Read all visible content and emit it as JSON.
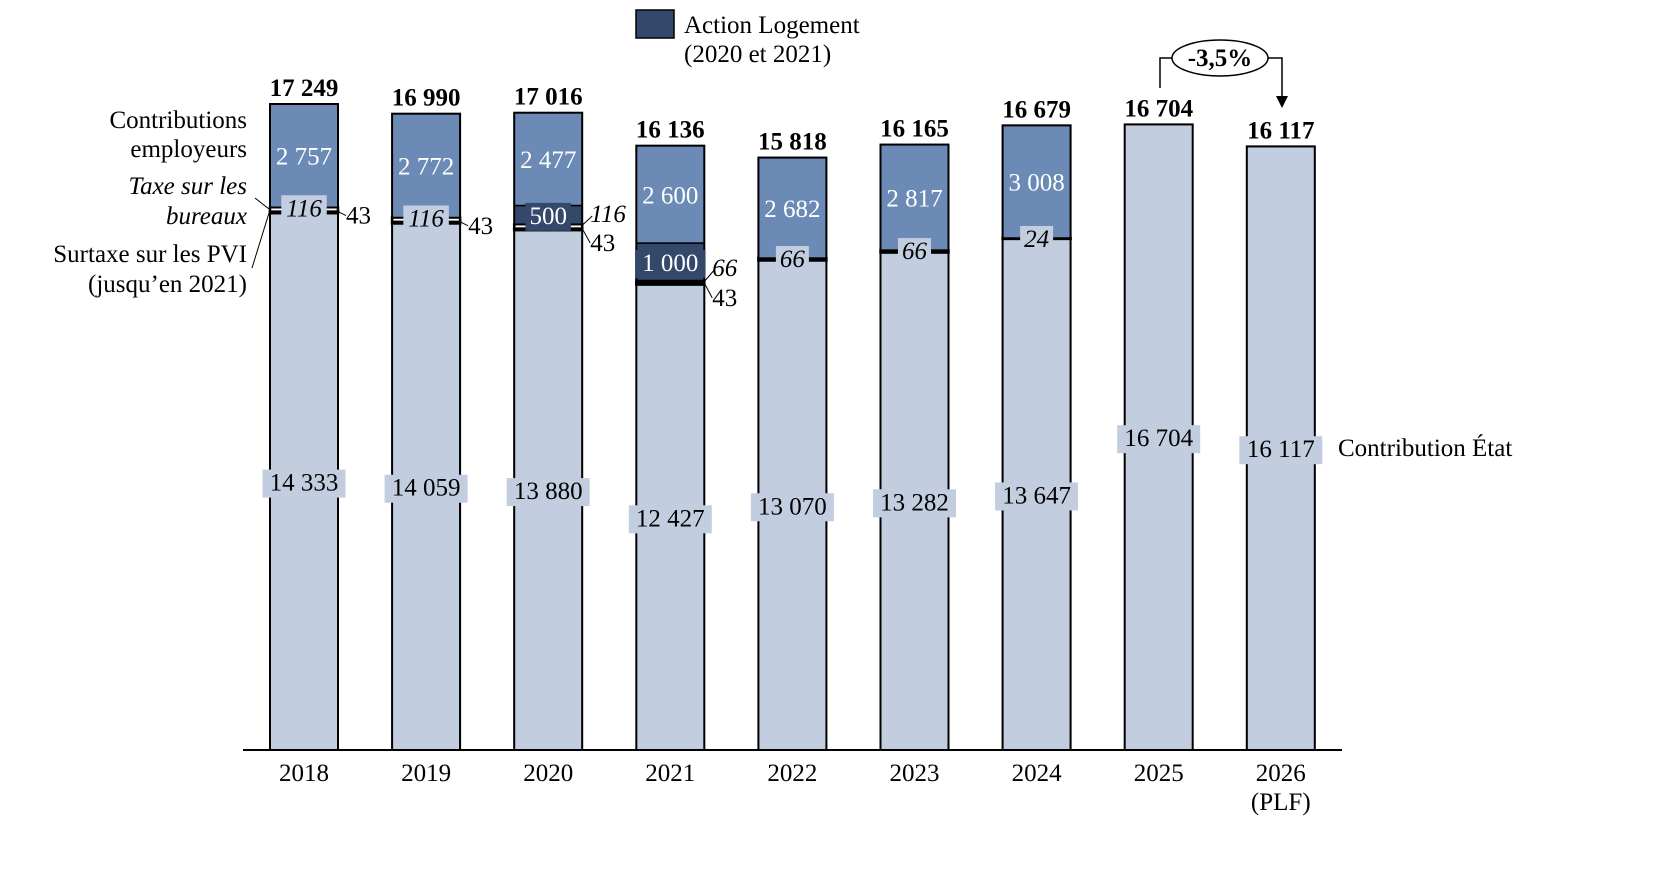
{
  "chart_data": {
    "type": "bar",
    "stacked": true,
    "categories": [
      "2018",
      "2019",
      "2020",
      "2021",
      "2022",
      "2023",
      "2024",
      "2025",
      "2026"
    ],
    "category_sublabels": [
      "",
      "",
      "",
      "",
      "",
      "",
      "",
      "",
      "(PLF)"
    ],
    "series": [
      {
        "name": "Contribution État",
        "color": "#c3cde0",
        "values": [
          14333,
          14059,
          13880,
          12427,
          13070,
          13282,
          13647,
          16704,
          16117
        ]
      },
      {
        "name": "Surtaxe sur les PVI (jusqu’en 2021)",
        "color": "#ffffff",
        "values": [
          43,
          43,
          43,
          43,
          0,
          0,
          0,
          0,
          0
        ]
      },
      {
        "name": "Taxe sur les bureaux",
        "color": "#ffffff",
        "values": [
          116,
          116,
          116,
          66,
          66,
          66,
          24,
          0,
          0
        ]
      },
      {
        "name": "Action Logement (2020 et 2021)",
        "color": "#34486b",
        "values": [
          0,
          0,
          500,
          1000,
          0,
          0,
          0,
          0,
          0
        ]
      },
      {
        "name": "Contributions employeurs",
        "color": "#6b8ab5",
        "values": [
          2757,
          2772,
          2477,
          2600,
          2682,
          2817,
          3008,
          0,
          0
        ]
      }
    ],
    "totals": [
      17249,
      16990,
      17016,
      16136,
      15818,
      16165,
      16679,
      16704,
      16117
    ],
    "value_labels": {
      "etat": [
        "14 333",
        "14 059",
        "13 880",
        "12 427",
        "13 070",
        "13 282",
        "13 647",
        "16 704",
        "16 117"
      ],
      "pvi": [
        "43",
        "43",
        "43",
        "43",
        "",
        "",
        "",
        "",
        ""
      ],
      "bureaux": [
        "116",
        "116",
        "116",
        "66",
        "66",
        "66",
        "24",
        "",
        ""
      ],
      "action": [
        "",
        "",
        "500",
        "1 000",
        "",
        "",
        "",
        "",
        ""
      ],
      "employeurs": [
        "2 757",
        "2 772",
        "2 477",
        "2 600",
        "2 682",
        "2 817",
        "3 008",
        "",
        ""
      ],
      "totals": [
        "17 249",
        "16 990",
        "17 016",
        "16 136",
        "15 818",
        "16 165",
        "16 679",
        "16 704",
        "16 117"
      ]
    },
    "legend": {
      "label_line1": "Action Logement",
      "label_line2": "(2020 et 2021)",
      "placement": "top-center"
    },
    "side_labels": {
      "employeurs": [
        "Contributions",
        "employeurs"
      ],
      "bureaux": [
        "Taxe sur les",
        "bureaux"
      ],
      "pvi": [
        "Surtaxe sur les PVI",
        "(jusqu’en 2021)"
      ],
      "etat": "Contribution État"
    },
    "annotation": {
      "text": "-3,5%",
      "from": "2025",
      "to": "2026"
    },
    "ylim": [
      0,
      18000
    ],
    "grid": false,
    "title": "",
    "xlabel": "",
    "ylabel": ""
  }
}
